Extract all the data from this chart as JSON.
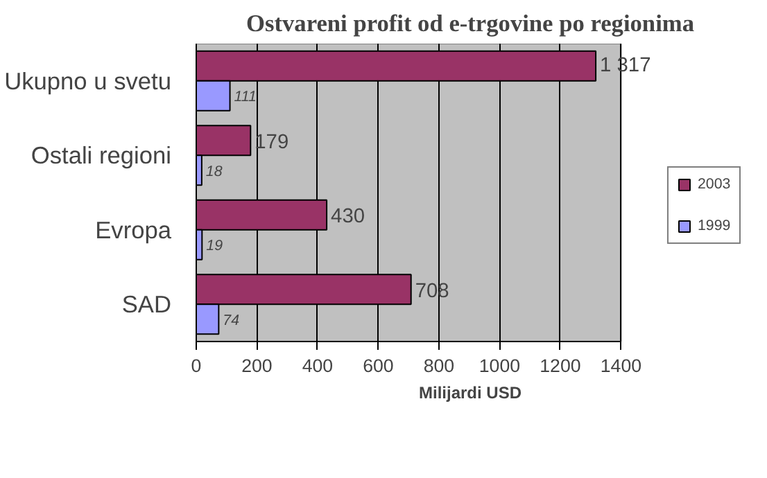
{
  "chart_data": {
    "type": "bar",
    "orientation": "horizontal",
    "title": "Ostvareni profit od e-trgovine po regionima",
    "xlabel": "Milijardi USD",
    "categories": [
      "Ukupno u svetu",
      "Ostali regioni",
      "Evropa",
      "SAD"
    ],
    "series": [
      {
        "name": "2003",
        "color": "#993366",
        "values": [
          1317,
          179,
          430,
          708
        ],
        "value_labels": [
          "1 317",
          "179",
          "430",
          "708"
        ]
      },
      {
        "name": "1999",
        "color": "#9999ff",
        "values": [
          111,
          18,
          19,
          74
        ],
        "value_labels": [
          "111",
          "18",
          "19",
          "74"
        ]
      }
    ],
    "xlim": [
      0,
      1400
    ],
    "xticks": [
      0,
      200,
      400,
      600,
      800,
      1000,
      1200,
      1400
    ],
    "grid": "x",
    "legend": "right"
  }
}
